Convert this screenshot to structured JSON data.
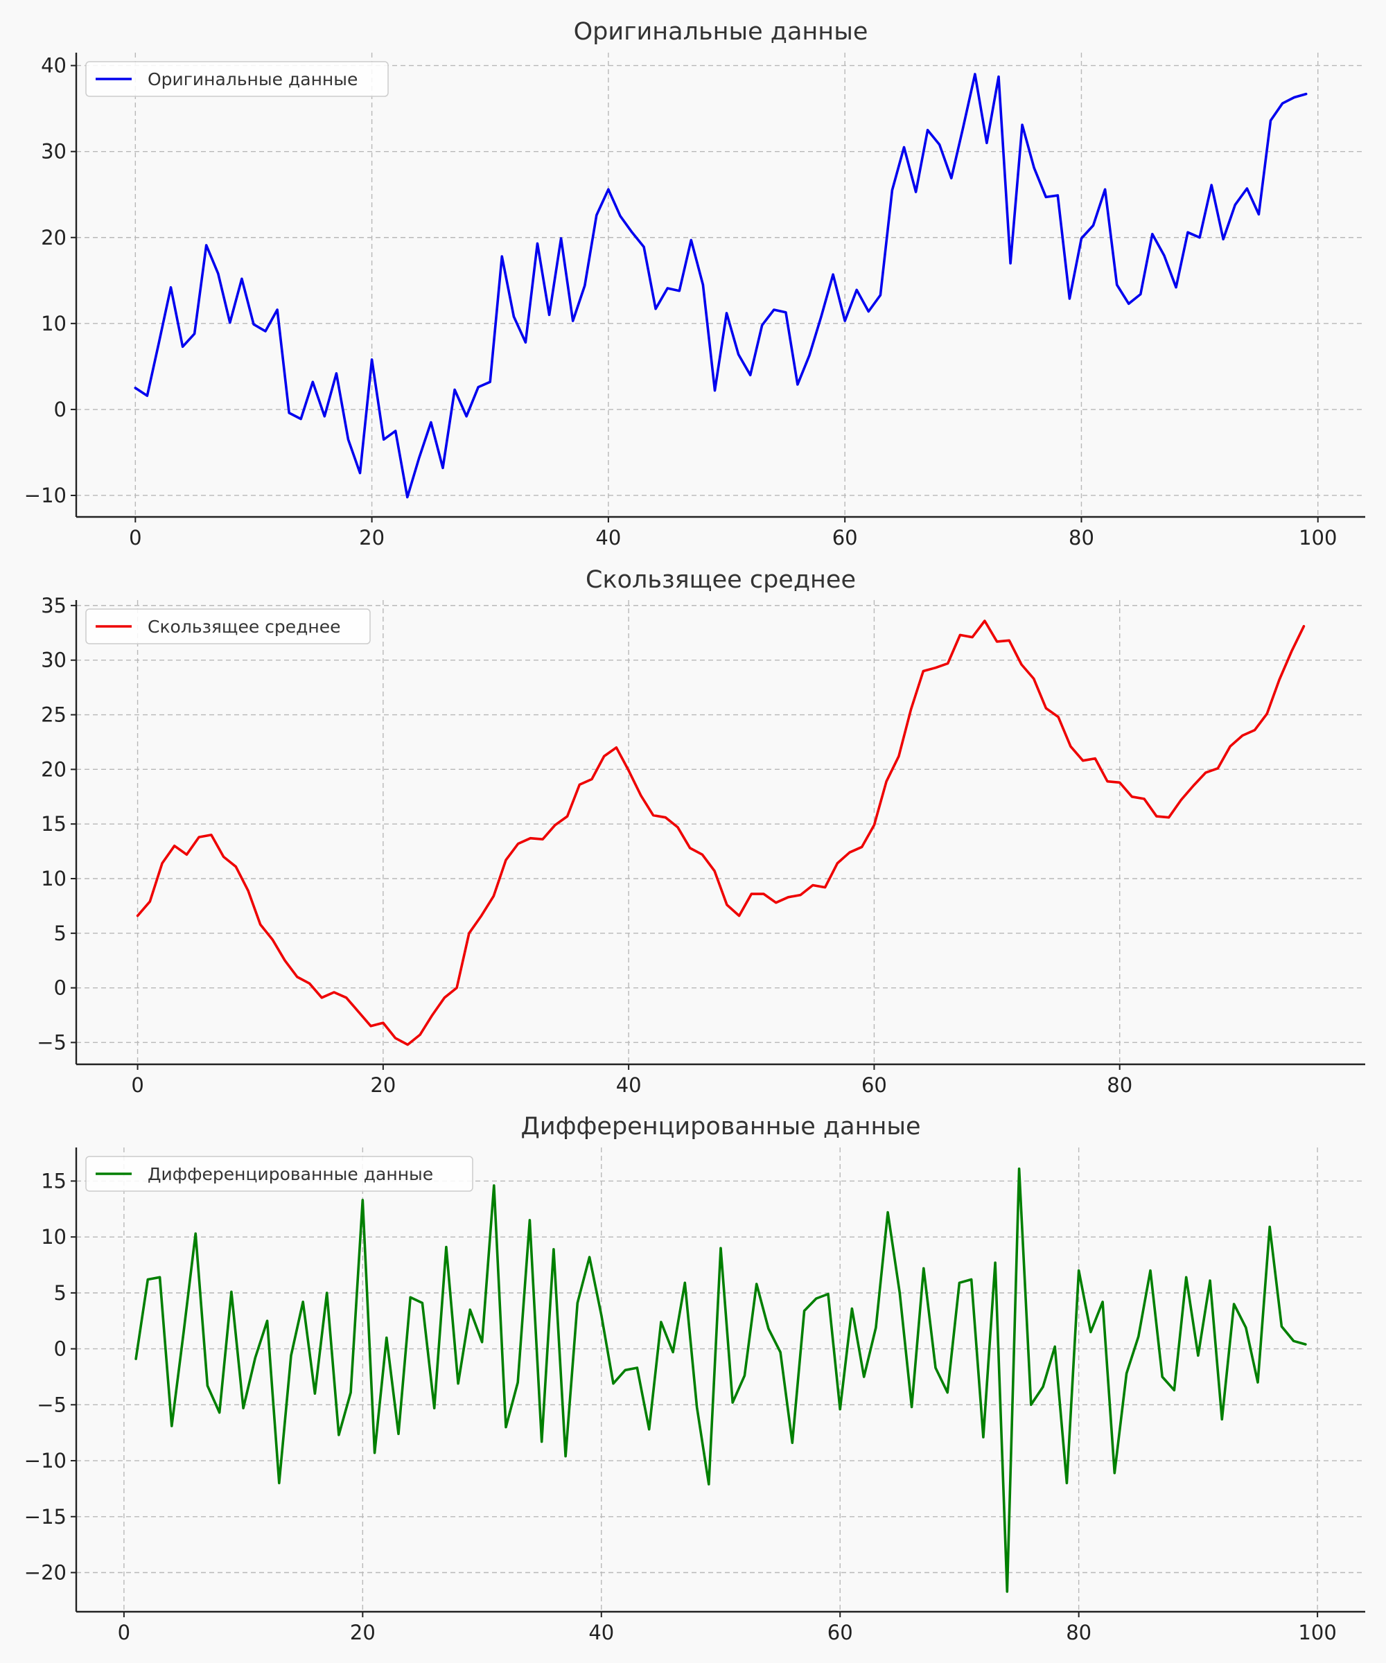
{
  "chart_data": [
    {
      "type": "line",
      "title": "Оригинальные данные",
      "xlabel": "",
      "ylabel": "",
      "xlim": [
        -5,
        104
      ],
      "ylim": [
        -12.5,
        41.5
      ],
      "xticks": [
        0,
        20,
        40,
        60,
        80,
        100
      ],
      "yticks": [
        -10,
        0,
        10,
        20,
        30,
        40
      ],
      "grid": true,
      "legend_position": "top-left",
      "series": [
        {
          "name": "Оригинальные данные",
          "color": "#0000ee",
          "x_start": 0,
          "values": [
            2.5,
            1.6,
            7.8,
            14.2,
            7.3,
            8.8,
            19.1,
            15.8,
            10.1,
            15.2,
            9.9,
            9.1,
            11.6,
            -0.4,
            -1.1,
            3.2,
            -0.8,
            4.2,
            -3.5,
            -7.4,
            5.8,
            -3.5,
            -2.5,
            -10.2,
            -5.6,
            -1.5,
            -6.8,
            2.3,
            -0.8,
            2.6,
            3.2,
            17.8,
            10.8,
            7.8,
            19.3,
            11.0,
            19.9,
            10.3,
            14.4,
            22.6,
            25.6,
            22.5,
            20.6,
            18.9,
            11.7,
            14.1,
            13.8,
            19.7,
            14.5,
            2.2,
            11.2,
            6.4,
            4.0,
            9.8,
            11.6,
            11.3,
            2.9,
            6.3,
            10.8,
            15.7,
            10.3,
            13.9,
            11.4,
            13.3,
            25.5,
            30.5,
            25.3,
            32.5,
            30.8,
            26.9,
            32.8,
            39.0,
            31.0,
            38.7,
            17.0,
            33.1,
            28.1,
            24.7,
            24.9,
            12.9,
            19.9,
            21.4,
            25.6,
            14.5,
            12.3,
            13.4,
            20.4,
            17.9,
            14.2,
            20.6,
            20.0,
            26.1,
            19.8,
            23.8,
            25.7,
            22.7,
            33.6,
            35.6,
            36.3,
            36.7
          ]
        }
      ]
    },
    {
      "type": "line",
      "title": "Скользящее среднее",
      "xlabel": "",
      "ylabel": "",
      "xlim": [
        -5,
        100
      ],
      "ylim": [
        -7,
        35.5
      ],
      "xticks": [
        0,
        20,
        40,
        60,
        80
      ],
      "yticks": [
        -5,
        0,
        5,
        10,
        15,
        20,
        25,
        30,
        35
      ],
      "grid": true,
      "legend_position": "top-left",
      "series": [
        {
          "name": "Скользящее среднее",
          "color": "#ee0000",
          "x_start": 0,
          "values": [
            6.6,
            7.9,
            11.4,
            13.0,
            12.2,
            13.8,
            14.0,
            12.0,
            11.1,
            8.9,
            5.8,
            4.4,
            2.5,
            1.0,
            0.4,
            -0.9,
            -0.4,
            -0.9,
            -2.2,
            -3.5,
            -3.2,
            -4.6,
            -5.2,
            -4.3,
            -2.5,
            -0.9,
            0.0,
            5.0,
            6.6,
            8.4,
            11.7,
            13.2,
            13.7,
            13.6,
            14.9,
            15.7,
            18.6,
            19.1,
            21.2,
            22.0,
            19.9,
            17.6,
            15.8,
            15.6,
            14.7,
            12.8,
            12.2,
            10.7,
            7.6,
            6.6,
            8.6,
            8.6,
            7.8,
            8.3,
            8.5,
            9.4,
            9.2,
            11.4,
            12.4,
            12.9,
            14.9,
            18.9,
            21.2,
            25.5,
            29.0,
            29.3,
            29.7,
            32.3,
            32.1,
            33.6,
            31.7,
            31.8,
            29.6,
            28.3,
            25.6,
            24.8,
            22.1,
            20.8,
            21.0,
            18.9,
            18.8,
            17.5,
            17.3,
            15.7,
            15.6,
            17.2,
            18.5,
            19.7,
            20.1,
            22.1,
            23.1,
            23.6,
            25.1,
            28.2,
            30.8,
            33.1
          ]
        }
      ]
    },
    {
      "type": "line",
      "title": "Дифференцированные данные",
      "xlabel": "",
      "ylabel": "",
      "xlim": [
        -4,
        104
      ],
      "ylim": [
        -23.5,
        18
      ],
      "xticks": [
        0,
        20,
        40,
        60,
        80,
        100
      ],
      "yticks": [
        -20,
        -15,
        -10,
        -5,
        0,
        5,
        10,
        15
      ],
      "grid": true,
      "legend_position": "top-left",
      "series": [
        {
          "name": "Дифференцированные данные",
          "color": "#007f00",
          "x_start": 1,
          "values": [
            -0.9,
            6.2,
            6.4,
            -6.9,
            1.5,
            10.3,
            -3.3,
            -5.7,
            5.1,
            -5.3,
            -0.8,
            2.5,
            -12.0,
            -0.6,
            4.2,
            -4.0,
            5.0,
            -7.7,
            -3.9,
            13.3,
            -9.3,
            1.0,
            -7.6,
            4.6,
            4.1,
            -5.3,
            9.1,
            -3.1,
            3.5,
            0.6,
            14.6,
            -7.0,
            -3.0,
            11.5,
            -8.3,
            8.9,
            -9.6,
            4.1,
            8.2,
            3.0,
            -3.1,
            -1.9,
            -1.7,
            -7.2,
            2.4,
            -0.3,
            5.9,
            -5.2,
            -12.1,
            9.0,
            -4.8,
            -2.4,
            5.8,
            1.8,
            -0.3,
            -8.4,
            3.4,
            4.5,
            4.9,
            -5.4,
            3.6,
            -2.5,
            1.9,
            12.2,
            5.0,
            -5.2,
            7.2,
            -1.7,
            -3.9,
            5.9,
            6.2,
            -7.9,
            7.7,
            -21.7,
            16.1,
            -5.0,
            -3.4,
            0.2,
            -12.0,
            7.0,
            1.5,
            4.2,
            -11.1,
            -2.2,
            1.1,
            7.0,
            -2.5,
            -3.7,
            6.4,
            -0.6,
            6.1,
            -6.3,
            4.0,
            1.9,
            -3.0,
            10.9,
            2.0,
            0.7,
            0.4
          ]
        }
      ]
    }
  ]
}
